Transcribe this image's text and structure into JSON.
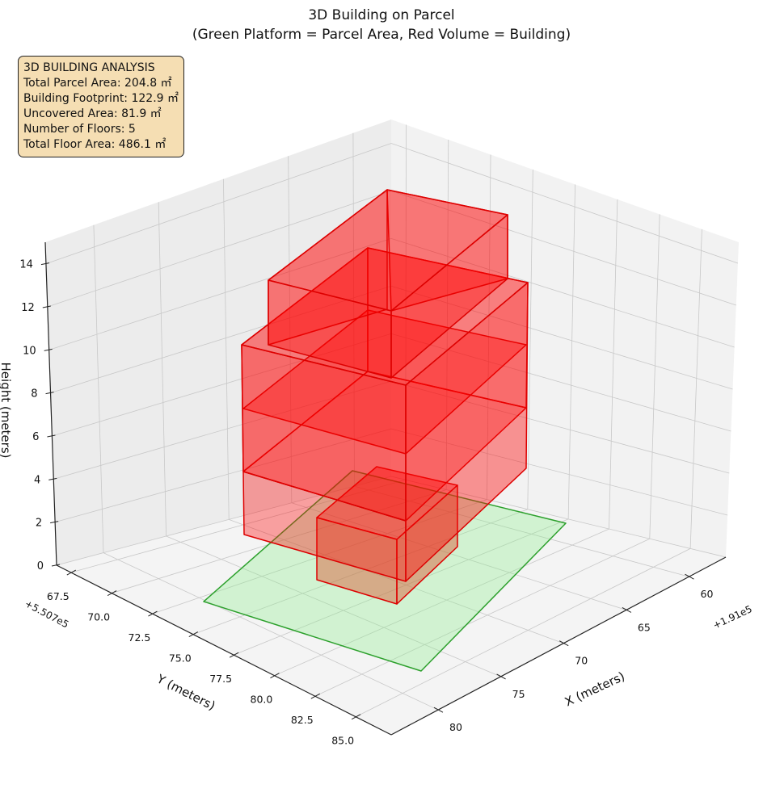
{
  "chart_data": {
    "type": "3d-polygon",
    "title": "3D Building on Parcel",
    "subtitle": "(Green Platform = Parcel Area, Red Volume = Building)",
    "xlabel": "X (meters)",
    "ylabel": "Y (meters)",
    "zlabel": "Height (meters)",
    "x_offset": "+1.91e5",
    "y_offset": "+5.507e5",
    "x_ticks": [
      "60",
      "65",
      "70",
      "75",
      "80"
    ],
    "y_ticks": [
      "67.5",
      "70.0",
      "72.5",
      "75.0",
      "77.5",
      "80.0",
      "82.5",
      "85.0"
    ],
    "z_ticks": [
      "0",
      "2",
      "4",
      "6",
      "8",
      "10",
      "12",
      "14"
    ],
    "zlim": [
      0,
      15
    ],
    "grid": true,
    "colors": {
      "parcel_fill": "#90ee90",
      "parcel_edge": "#2ca02c",
      "building_fill": "#ff0000",
      "building_edge": "#dd0000"
    },
    "info_box": {
      "heading": "3D BUILDING ANALYSIS",
      "lines": [
        "Total Parcel Area: 204.8 ㎡",
        "Building Footprint: 122.9 ㎡",
        "Uncovered Area: 81.9 ㎡",
        "Number of Floors: 5",
        "Total Floor Area: 486.1 ㎡"
      ]
    }
  }
}
